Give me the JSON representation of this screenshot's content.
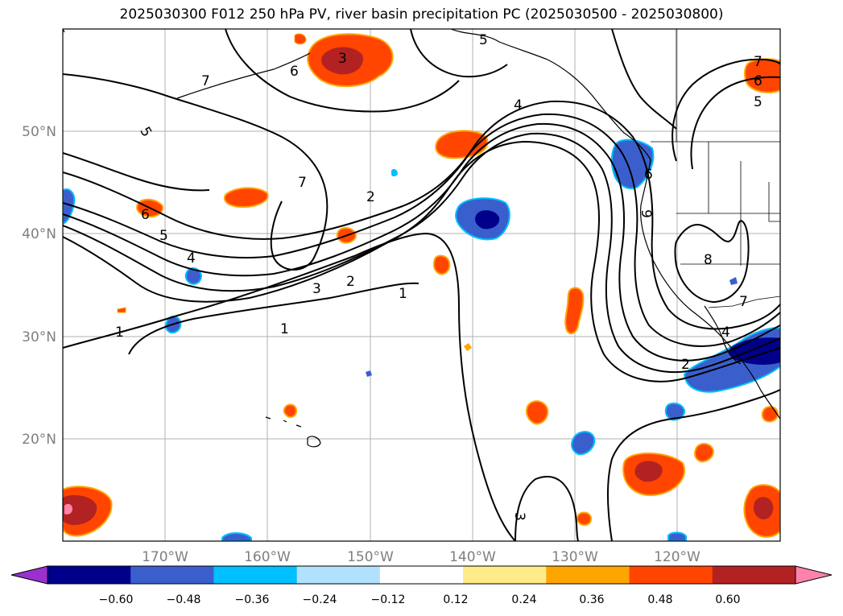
{
  "title": "2025030300 F012 250 hPa PV, river basin precipitation PC (2025030500 - 2025030800)",
  "latitude_labels": [
    "50°N",
    "40°N",
    "30°N",
    "20°N"
  ],
  "longitude_labels": [
    "170°W",
    "160°W",
    "150°W",
    "140°W",
    "130°W",
    "120°W"
  ],
  "colorbar": {
    "ticks": [
      "−0.60",
      "−0.48",
      "−0.36",
      "−0.24",
      "−0.12",
      "0.12",
      "0.24",
      "0.36",
      "0.48",
      "0.60"
    ],
    "colors": [
      "#9b30d0",
      "#00008b",
      "#3a5fcd",
      "#00bfff",
      "#b0e2ff",
      "#ffffff",
      "#ffeb8a",
      "#ffa500",
      "#ff4500",
      "#b22222",
      "#ff82ab"
    ]
  },
  "contour_labels": [
    "5",
    "6",
    "7",
    "5",
    "4",
    "3",
    "2",
    "1",
    "1",
    "7",
    "6",
    "5",
    "4",
    "3",
    "2",
    "1",
    "6",
    "7",
    "6",
    "5",
    "8",
    "7",
    "4",
    "2",
    "9",
    "3"
  ]
}
